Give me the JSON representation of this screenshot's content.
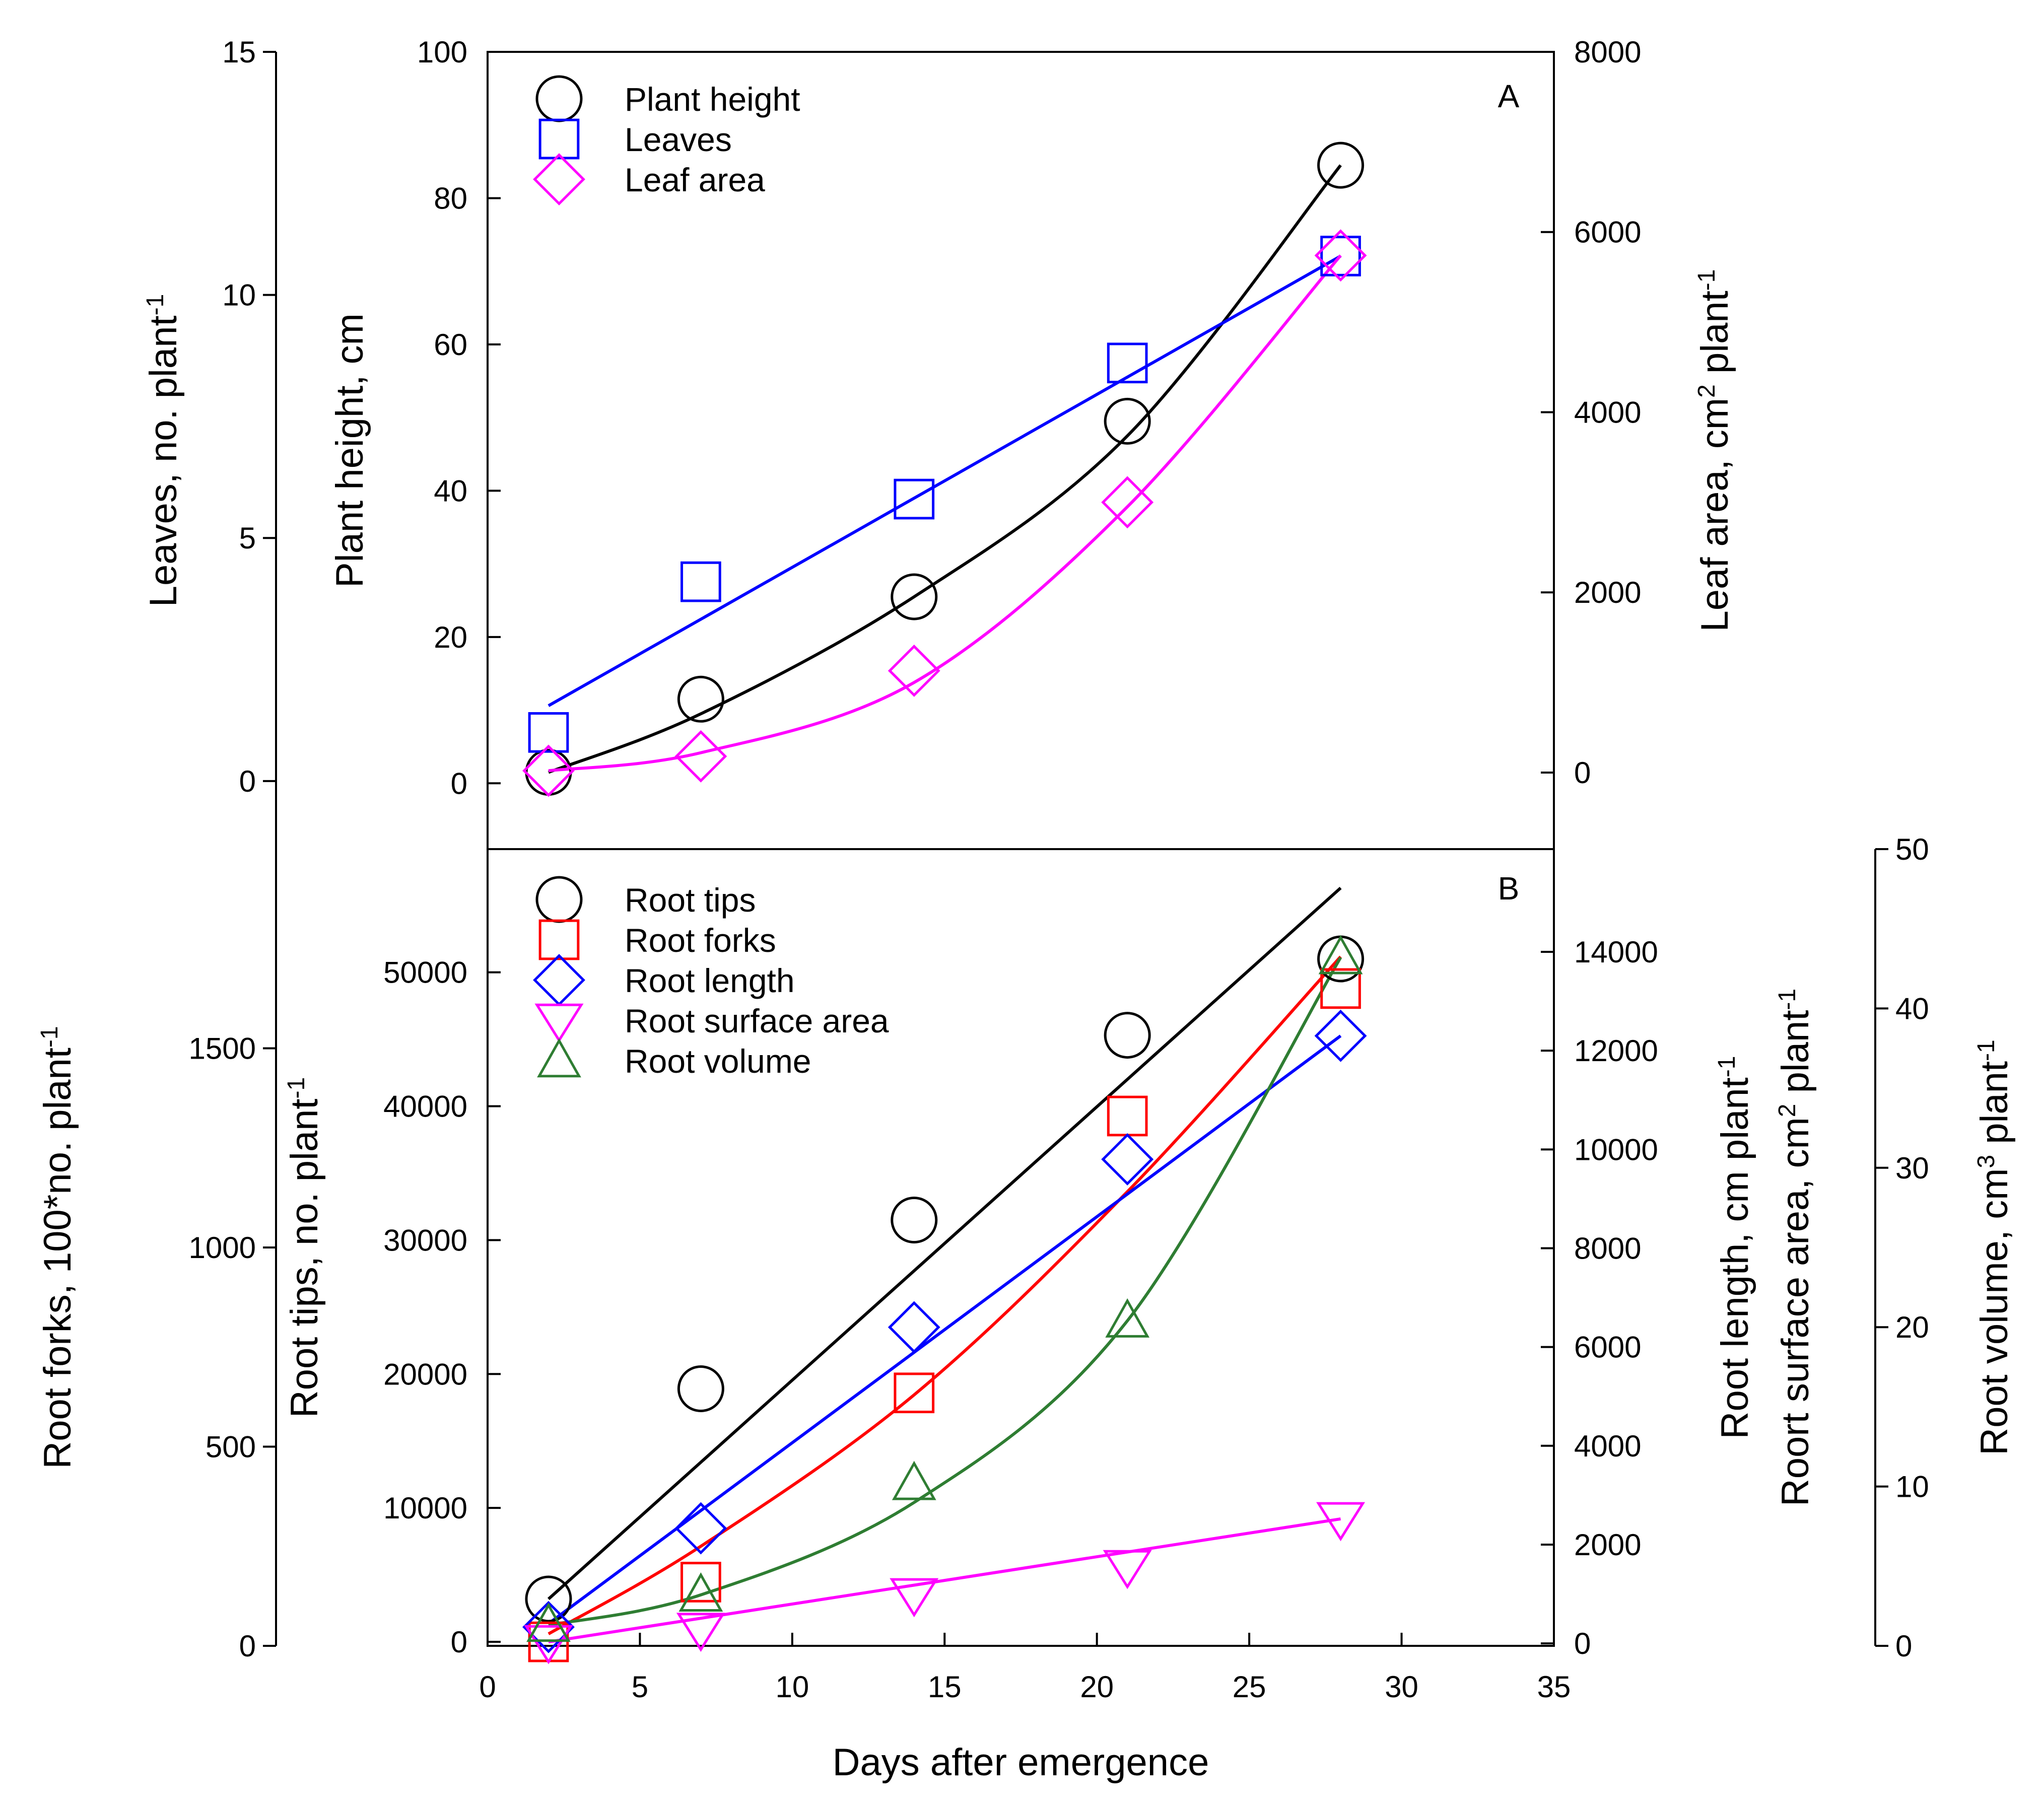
{
  "x_axis": {
    "label": "Days after emergence",
    "lim": [
      0,
      35
    ],
    "ticks": [
      "0",
      "5",
      "10",
      "15",
      "20",
      "25",
      "30",
      "35"
    ]
  },
  "chart_data": [
    {
      "type": "scatter",
      "panel": "A",
      "legend_location": "top-left",
      "x": [
        2,
        7,
        14,
        21,
        28
      ],
      "axes": {
        "left_outer": {
          "label": "Leaves, no. plant",
          "sup": "-1",
          "lim": [
            -1.4,
            15
          ],
          "ticks": [
            "0",
            "5",
            "10",
            "15"
          ]
        },
        "left_inner": {
          "label": "Plant height, cm",
          "lim": [
            -9,
            100
          ],
          "ticks": [
            "0",
            "20",
            "40",
            "60",
            "80",
            "100"
          ]
        },
        "right": {
          "label": "Leaf area, cm",
          "sup1": "2",
          "label2": " plant",
          "sup2": "-1",
          "lim": [
            -850,
            8000
          ],
          "ticks": [
            "0",
            "2000",
            "4000",
            "6000",
            "8000"
          ]
        }
      },
      "series": [
        {
          "name": "Plant height",
          "axis": "left_inner",
          "marker": "circle",
          "color": "#000000",
          "values": [
            1.5,
            11.5,
            25.5,
            49.5,
            84.5
          ],
          "fit": {
            "kind": "poly",
            "x": [
              2,
              7,
              14,
              21,
              28
            ],
            "y": [
              1.5,
              9.5,
              25.5,
              47.5,
              84.5
            ]
          }
        },
        {
          "name": "Leaves",
          "axis": "left_outer",
          "marker": "square",
          "color": "#0000ff",
          "values": [
            1,
            4.1,
            5.8,
            8.6,
            10.8
          ],
          "fit": {
            "kind": "line",
            "x": [
              2,
              28
            ],
            "y": [
              1.55,
              10.8
            ]
          }
        },
        {
          "name": "Leaf area",
          "axis": "right",
          "marker": "diamond",
          "color": "#ff00ff",
          "values": [
            20,
            180,
            1130,
            3000,
            5740
          ],
          "fit": {
            "kind": "poly",
            "x": [
              2,
              7,
              14,
              21,
              28
            ],
            "y": [
              20,
              220,
              1000,
              2950,
              5740
            ]
          }
        }
      ]
    },
    {
      "type": "scatter",
      "panel": "B",
      "legend_location": "top-left",
      "x": [
        2,
        7,
        14,
        21,
        28
      ],
      "axes": {
        "left_outer": {
          "label": "Root forks, 100*no. plant",
          "sup": "-1",
          "lim": [
            0,
            2000
          ],
          "ticks": [
            "0",
            "500",
            "1000",
            "1500"
          ]
        },
        "left_inner": {
          "label": "Root tips, no. plant",
          "sup": "-1",
          "lim": [
            -300,
            59200
          ],
          "ticks": [
            "0",
            "10000",
            "20000",
            "30000",
            "40000",
            "50000"
          ]
        },
        "right_inner": {
          "label": "Root length, cm plant",
          "sup": "-1",
          "label_b": "Roort surface area, cm",
          "sup_b1": "2",
          "label_b2": " plant",
          "sup_b2": "-1",
          "lim": [
            -50,
            16080
          ],
          "ticks": [
            "0",
            "2000",
            "4000",
            "6000",
            "8000",
            "10000",
            "12000",
            "14000"
          ]
        },
        "right_outer": {
          "label": "Root volume, cm",
          "sup1": "3",
          "label2": " plant",
          "sup2": "-1",
          "lim": [
            0,
            50
          ],
          "ticks": [
            "0",
            "10",
            "20",
            "30",
            "40",
            "50"
          ]
        }
      },
      "series": [
        {
          "name": "Root tips",
          "axis": "left_inner",
          "marker": "circle",
          "color": "#000000",
          "values": [
            3200,
            18900,
            31500,
            45300,
            51000
          ],
          "fit": {
            "kind": "line",
            "x": [
              2,
              28
            ],
            "y": [
              3200,
              56300
            ]
          }
        },
        {
          "name": "Root forks",
          "axis": "left_outer",
          "marker": "square",
          "color": "#ff0000",
          "values": [
            10,
            160,
            635,
            1330,
            1650
          ],
          "fit": {
            "kind": "poly",
            "x": [
              2,
              7,
              14,
              21,
              28
            ],
            "y": [
              30,
              250,
              630,
              1140,
              1730
            ]
          }
        },
        {
          "name": "Root length",
          "axis": "right_inner",
          "marker": "diamond",
          "color": "#0000ff",
          "values": [
            330,
            2330,
            6400,
            9800,
            12300
          ],
          "fit": {
            "kind": "line",
            "x": [
              2,
              28
            ],
            "y": [
              400,
              12300
            ]
          }
        },
        {
          "name": "Root surface area",
          "axis": "right_inner",
          "marker": "triangle-down",
          "color": "#ff00ff",
          "values": [
            30,
            280,
            980,
            1550,
            2520
          ],
          "fit": {
            "kind": "line",
            "x": [
              2,
              28
            ],
            "y": [
              30,
              2520
            ]
          }
        },
        {
          "name": "Root volume",
          "axis": "right_outer",
          "marker": "triangle-up",
          "color": "#2e7d32",
          "values": [
            1.3,
            3.2,
            10.2,
            20.4,
            43.2
          ],
          "fit": {
            "kind": "poly",
            "x": [
              2,
              7,
              14,
              21,
              28
            ],
            "y": [
              1.3,
              3.2,
              9,
              20.4,
              43.2
            ]
          }
        }
      ]
    }
  ]
}
